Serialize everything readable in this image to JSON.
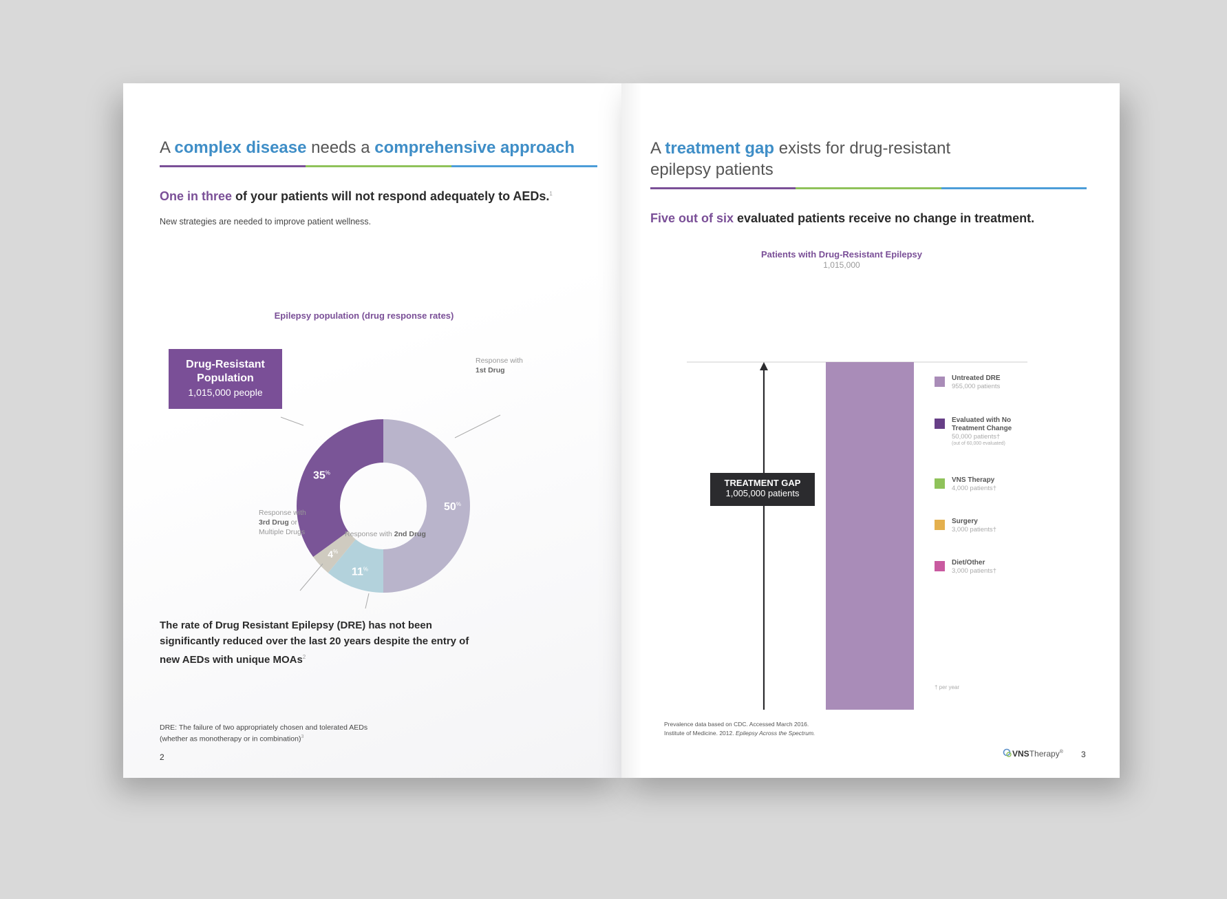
{
  "left": {
    "heading": {
      "pre": "A ",
      "hl1": "complex disease",
      "mid": " needs a ",
      "hl2": "comprehensive approach"
    },
    "subhead": {
      "hl": "One in three",
      "rest": " of your patients will not respond adequately to AEDs.",
      "sup": "1"
    },
    "intro": "New strategies are needed to improve patient wellness.",
    "callout": {
      "title_line1": "Drug-Resistant",
      "title_line2": "Population",
      "value": "1,015,000 people"
    },
    "labels": {
      "first_pre": "Response with",
      "first_bold": "1st Drug",
      "third_pre": "Response with",
      "third_bold": "3rd Drug",
      "third_or": " or",
      "third_post": "Multiple Drugs",
      "second_pre": "Response with ",
      "second_bold": "2nd Drug"
    },
    "quote": "The rate of Drug Resistant Epilepsy (DRE) has not been significantly reduced over the last 20 years despite the entry of new AEDs with unique MOAs",
    "quote_sup": "2",
    "footnote_line1": "DRE: The failure of two appropriately chosen and tolerated AEDs",
    "footnote_line2": "(whether as monotherapy or in combination)",
    "footnote_sup": "3",
    "page_number": "2"
  },
  "right": {
    "heading_pre": "A ",
    "heading_hl": "treatment gap",
    "heading_rest": " exists for drug-resistant",
    "heading_line2": "epilepsy patients",
    "subhead": {
      "hl": "Five out of six",
      "rest": " evaluated patients receive no change in treatment."
    },
    "treatment_gap": {
      "title": "TREATMENT GAP",
      "value": "1,005,000 patients"
    },
    "per_year": "† per year",
    "refs_line1": "Prevalence data based on CDC. Accessed March 2016.",
    "refs_line2_pre": "Institute of Medicine. 2012. ",
    "refs_line2_italic": "Epilepsy Across the Spectrum.",
    "logo_bold": "VNS",
    "logo_rest": "Therapy",
    "logo_reg": "®",
    "page_number": "3"
  },
  "chart_data": [
    {
      "type": "pie",
      "title": "Epilepsy population (drug response rates)",
      "unit": "%",
      "categories": [
        "Response with 1st Drug",
        "Response with 2nd Drug",
        "Response with 3rd Drug or Multiple Drugs",
        "Drug-Resistant Population"
      ],
      "values": [
        50,
        11,
        4,
        35
      ],
      "colors": [
        "#b9b4cb",
        "#b3d2dc",
        "#cfcbc0",
        "#7a5597"
      ]
    },
    {
      "type": "bar",
      "stacked": true,
      "title": "Patients with Drug-Resistant Epilepsy",
      "subtitle": "1,015,000",
      "series": [
        {
          "name": "Untreated DRE",
          "value": 955000,
          "value_label": "955,000 patients",
          "color": "#a98cb8"
        },
        {
          "name": "Evaluated with No Treatment Change",
          "value": 50000,
          "value_label": "50,000 patients†",
          "note": "(out of 60,000 evaluated)",
          "color": "#673f87"
        },
        {
          "name": "VNS Therapy",
          "value": 4000,
          "value_label": "4,000 patients†",
          "color": "#8fc25a"
        },
        {
          "name": "Surgery",
          "value": 3000,
          "value_label": "3,000 patients†",
          "color": "#e4b04e"
        },
        {
          "name": "Diet/Other",
          "value": 3000,
          "value_label": "3,000 patients†",
          "color": "#c95aa0"
        }
      ],
      "total": 1015000,
      "treatment_gap": 1005000
    }
  ]
}
